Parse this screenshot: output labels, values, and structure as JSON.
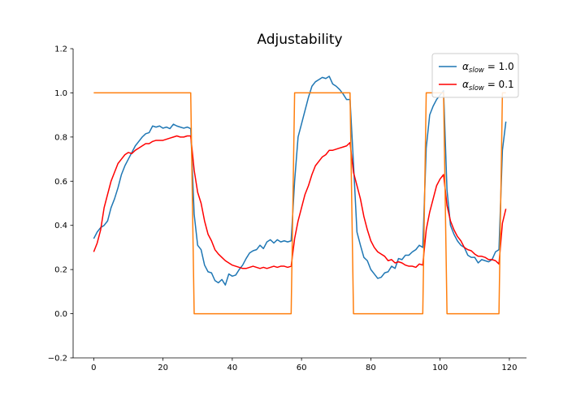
{
  "chart_data": {
    "type": "line",
    "title": "Adjustability",
    "xlabel": "",
    "ylabel": "",
    "xlim": [
      -5.95,
      124.95
    ],
    "ylim": [
      -0.2,
      1.2
    ],
    "xticks": [
      0,
      20,
      40,
      60,
      80,
      100,
      120
    ],
    "xtick_labels": [
      "0",
      "20",
      "40",
      "60",
      "80",
      "100",
      "120"
    ],
    "yticks": [
      -0.2,
      0.0,
      0.2,
      0.4,
      0.6,
      0.8,
      1.0,
      1.2
    ],
    "ytick_labels": [
      "−0.2",
      "0.0",
      "0.2",
      "0.4",
      "0.6",
      "0.8",
      "1.0",
      "1.2"
    ],
    "grid": false,
    "legend_position": "upper right",
    "series": [
      {
        "name": "αslow = 1.0",
        "legend_main": "α",
        "legend_sub": "slow",
        "legend_rest": " = 1.0",
        "color": "#1f77b4",
        "points": [
          [
            0,
            0.34
          ],
          [
            1,
            0.37
          ],
          [
            2,
            0.39
          ],
          [
            3,
            0.4
          ],
          [
            4,
            0.42
          ],
          [
            5,
            0.48
          ],
          [
            6,
            0.52
          ],
          [
            7,
            0.57
          ],
          [
            8,
            0.63
          ],
          [
            9,
            0.67
          ],
          [
            10,
            0.7
          ],
          [
            11,
            0.73
          ],
          [
            12,
            0.76
          ],
          [
            13,
            0.78
          ],
          [
            14,
            0.8
          ],
          [
            15,
            0.815
          ],
          [
            16,
            0.82
          ],
          [
            17,
            0.85
          ],
          [
            18,
            0.845
          ],
          [
            19,
            0.85
          ],
          [
            20,
            0.84
          ],
          [
            21,
            0.845
          ],
          [
            22,
            0.838
          ],
          [
            23,
            0.858
          ],
          [
            24,
            0.85
          ],
          [
            25,
            0.845
          ],
          [
            26,
            0.84
          ],
          [
            27,
            0.845
          ],
          [
            28,
            0.838
          ],
          [
            29,
            0.45
          ],
          [
            30,
            0.31
          ],
          [
            31,
            0.29
          ],
          [
            32,
            0.22
          ],
          [
            33,
            0.19
          ],
          [
            34,
            0.185
          ],
          [
            35,
            0.15
          ],
          [
            36,
            0.14
          ],
          [
            37,
            0.155
          ],
          [
            38,
            0.13
          ],
          [
            39,
            0.18
          ],
          [
            40,
            0.17
          ],
          [
            41,
            0.175
          ],
          [
            42,
            0.2
          ],
          [
            43,
            0.22
          ],
          [
            44,
            0.25
          ],
          [
            45,
            0.275
          ],
          [
            46,
            0.285
          ],
          [
            47,
            0.29
          ],
          [
            48,
            0.31
          ],
          [
            49,
            0.295
          ],
          [
            50,
            0.325
          ],
          [
            51,
            0.335
          ],
          [
            52,
            0.32
          ],
          [
            53,
            0.335
          ],
          [
            54,
            0.325
          ],
          [
            55,
            0.33
          ],
          [
            56,
            0.325
          ],
          [
            57,
            0.33
          ],
          [
            58,
            0.6
          ],
          [
            59,
            0.8
          ],
          [
            60,
            0.86
          ],
          [
            61,
            0.92
          ],
          [
            62,
            0.98
          ],
          [
            63,
            1.03
          ],
          [
            64,
            1.05
          ],
          [
            65,
            1.06
          ],
          [
            66,
            1.07
          ],
          [
            67,
            1.065
          ],
          [
            68,
            1.075
          ],
          [
            69,
            1.04
          ],
          [
            70,
            1.03
          ],
          [
            71,
            1.015
          ],
          [
            72,
            0.995
          ],
          [
            73,
            0.97
          ],
          [
            74,
            0.97
          ],
          [
            75,
            0.68
          ],
          [
            76,
            0.37
          ],
          [
            77,
            0.31
          ],
          [
            78,
            0.255
          ],
          [
            79,
            0.24
          ],
          [
            80,
            0.2
          ],
          [
            81,
            0.18
          ],
          [
            82,
            0.16
          ],
          [
            83,
            0.165
          ],
          [
            84,
            0.185
          ],
          [
            85,
            0.19
          ],
          [
            86,
            0.215
          ],
          [
            87,
            0.205
          ],
          [
            88,
            0.25
          ],
          [
            89,
            0.245
          ],
          [
            90,
            0.265
          ],
          [
            91,
            0.265
          ],
          [
            92,
            0.28
          ],
          [
            93,
            0.29
          ],
          [
            94,
            0.31
          ],
          [
            95,
            0.3
          ],
          [
            96,
            0.75
          ],
          [
            97,
            0.9
          ],
          [
            98,
            0.94
          ],
          [
            99,
            0.97
          ],
          [
            100,
            0.99
          ],
          [
            101,
            1.01
          ],
          [
            102,
            0.56
          ],
          [
            103,
            0.4
          ],
          [
            104,
            0.36
          ],
          [
            105,
            0.33
          ],
          [
            106,
            0.31
          ],
          [
            107,
            0.3
          ],
          [
            108,
            0.265
          ],
          [
            109,
            0.255
          ],
          [
            110,
            0.255
          ],
          [
            111,
            0.23
          ],
          [
            112,
            0.245
          ],
          [
            113,
            0.24
          ],
          [
            114,
            0.235
          ],
          [
            115,
            0.245
          ],
          [
            116,
            0.28
          ],
          [
            117,
            0.29
          ],
          [
            118,
            0.74
          ],
          [
            119,
            0.87
          ]
        ]
      },
      {
        "name": "αslow = 0.1",
        "legend_main": "α",
        "legend_sub": "slow",
        "legend_rest": " = 0.1",
        "color": "#ff0000",
        "points": [
          [
            0,
            0.28
          ],
          [
            1,
            0.32
          ],
          [
            2,
            0.38
          ],
          [
            3,
            0.48
          ],
          [
            4,
            0.54
          ],
          [
            5,
            0.6
          ],
          [
            6,
            0.64
          ],
          [
            7,
            0.68
          ],
          [
            8,
            0.7
          ],
          [
            9,
            0.72
          ],
          [
            10,
            0.73
          ],
          [
            11,
            0.725
          ],
          [
            12,
            0.74
          ],
          [
            13,
            0.75
          ],
          [
            14,
            0.76
          ],
          [
            15,
            0.77
          ],
          [
            16,
            0.77
          ],
          [
            17,
            0.78
          ],
          [
            18,
            0.785
          ],
          [
            19,
            0.785
          ],
          [
            20,
            0.785
          ],
          [
            21,
            0.79
          ],
          [
            22,
            0.795
          ],
          [
            23,
            0.8
          ],
          [
            24,
            0.805
          ],
          [
            25,
            0.8
          ],
          [
            26,
            0.8
          ],
          [
            27,
            0.805
          ],
          [
            28,
            0.805
          ],
          [
            29,
            0.65
          ],
          [
            30,
            0.55
          ],
          [
            31,
            0.5
          ],
          [
            32,
            0.42
          ],
          [
            33,
            0.36
          ],
          [
            34,
            0.33
          ],
          [
            35,
            0.29
          ],
          [
            36,
            0.27
          ],
          [
            37,
            0.255
          ],
          [
            38,
            0.24
          ],
          [
            39,
            0.23
          ],
          [
            40,
            0.22
          ],
          [
            41,
            0.215
          ],
          [
            42,
            0.21
          ],
          [
            43,
            0.205
          ],
          [
            44,
            0.205
          ],
          [
            45,
            0.21
          ],
          [
            46,
            0.215
          ],
          [
            47,
            0.21
          ],
          [
            48,
            0.205
          ],
          [
            49,
            0.21
          ],
          [
            50,
            0.205
          ],
          [
            51,
            0.21
          ],
          [
            52,
            0.215
          ],
          [
            53,
            0.21
          ],
          [
            54,
            0.215
          ],
          [
            55,
            0.215
          ],
          [
            56,
            0.21
          ],
          [
            57,
            0.215
          ],
          [
            58,
            0.34
          ],
          [
            59,
            0.42
          ],
          [
            60,
            0.48
          ],
          [
            61,
            0.54
          ],
          [
            62,
            0.58
          ],
          [
            63,
            0.63
          ],
          [
            64,
            0.67
          ],
          [
            65,
            0.69
          ],
          [
            66,
            0.71
          ],
          [
            67,
            0.72
          ],
          [
            68,
            0.74
          ],
          [
            69,
            0.74
          ],
          [
            70,
            0.745
          ],
          [
            71,
            0.75
          ],
          [
            72,
            0.755
          ],
          [
            73,
            0.76
          ],
          [
            74,
            0.775
          ],
          [
            75,
            0.64
          ],
          [
            76,
            0.58
          ],
          [
            77,
            0.52
          ],
          [
            78,
            0.44
          ],
          [
            79,
            0.38
          ],
          [
            80,
            0.33
          ],
          [
            81,
            0.3
          ],
          [
            82,
            0.28
          ],
          [
            83,
            0.27
          ],
          [
            84,
            0.26
          ],
          [
            85,
            0.24
          ],
          [
            86,
            0.245
          ],
          [
            87,
            0.23
          ],
          [
            88,
            0.235
          ],
          [
            89,
            0.23
          ],
          [
            90,
            0.22
          ],
          [
            91,
            0.215
          ],
          [
            92,
            0.215
          ],
          [
            93,
            0.21
          ],
          [
            94,
            0.225
          ],
          [
            95,
            0.22
          ],
          [
            96,
            0.38
          ],
          [
            97,
            0.46
          ],
          [
            98,
            0.52
          ],
          [
            99,
            0.58
          ],
          [
            100,
            0.61
          ],
          [
            101,
            0.63
          ],
          [
            102,
            0.49
          ],
          [
            103,
            0.42
          ],
          [
            104,
            0.38
          ],
          [
            105,
            0.35
          ],
          [
            106,
            0.33
          ],
          [
            107,
            0.3
          ],
          [
            108,
            0.29
          ],
          [
            109,
            0.285
          ],
          [
            110,
            0.27
          ],
          [
            111,
            0.26
          ],
          [
            112,
            0.26
          ],
          [
            113,
            0.255
          ],
          [
            114,
            0.245
          ],
          [
            115,
            0.245
          ],
          [
            116,
            0.24
          ],
          [
            117,
            0.225
          ],
          [
            118,
            0.41
          ],
          [
            119,
            0.475
          ]
        ]
      },
      {
        "name": "",
        "color": "#ff7f0e",
        "points": [
          [
            0,
            1.0
          ],
          [
            28,
            1.0
          ],
          [
            29,
            0.0
          ],
          [
            57,
            0.0
          ],
          [
            58,
            1.0
          ],
          [
            74,
            1.0
          ],
          [
            75,
            0.0
          ],
          [
            95,
            0.0
          ],
          [
            96,
            1.0
          ],
          [
            101,
            1.0
          ],
          [
            102,
            0.0
          ],
          [
            117,
            0.0
          ],
          [
            118,
            1.0
          ],
          [
            119,
            1.0
          ]
        ]
      }
    ]
  }
}
